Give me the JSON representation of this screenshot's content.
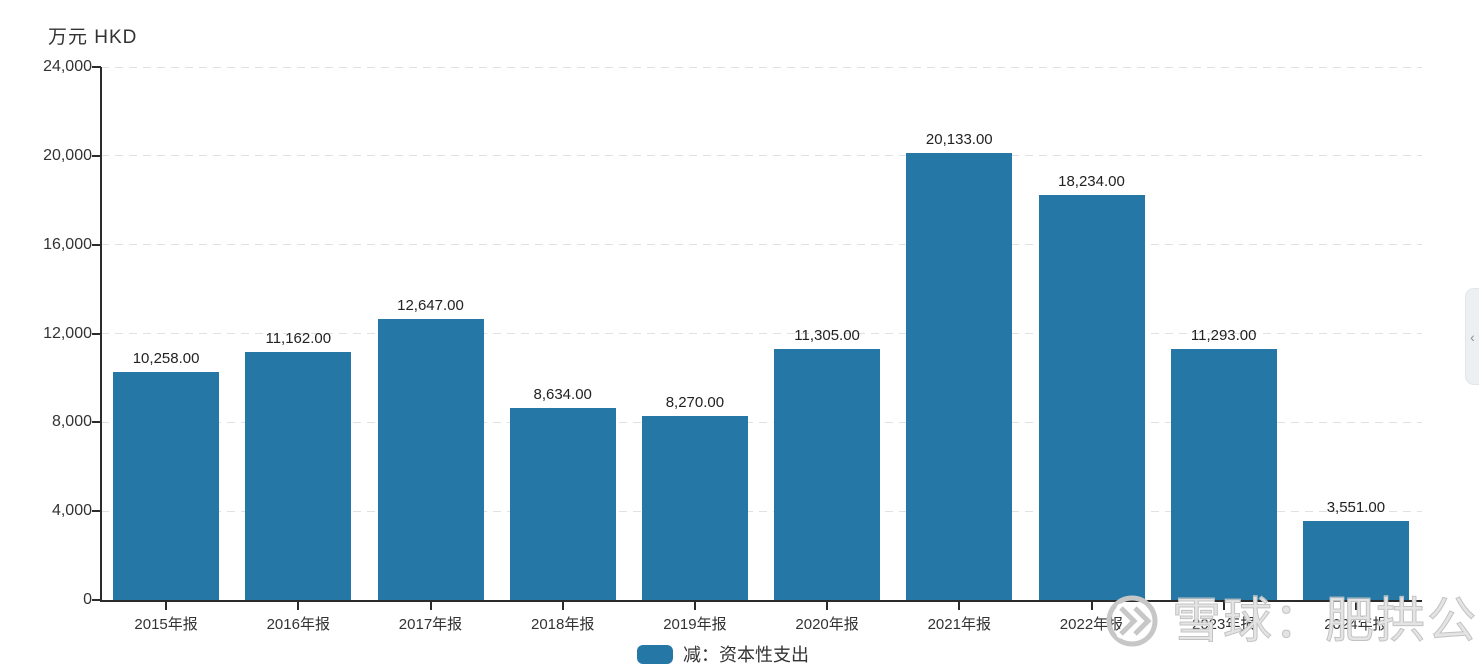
{
  "unit_label": "万元 HKD",
  "chart_data": {
    "type": "bar",
    "title": "",
    "ylabel": "万元 HKD",
    "categories": [
      "2015年报",
      "2016年报",
      "2017年报",
      "2018年报",
      "2019年报",
      "2020年报",
      "2021年报",
      "2022年报",
      "2023年报",
      "2024年报"
    ],
    "series": [
      {
        "name": "减：资本性支出",
        "color": "#2578a6",
        "values": [
          10258,
          11162,
          12647,
          8634,
          8270,
          11305,
          20133,
          18234,
          11293,
          3551
        ],
        "value_labels": [
          "10,258.00",
          "11,162.00",
          "12,647.00",
          "8,634.00",
          "8,270.00",
          "11,305.00",
          "20,133.00",
          "18,234.00",
          "11,293.00",
          "3,551.00"
        ]
      }
    ],
    "ylim": [
      0,
      24000
    ],
    "yticks": [
      0,
      4000,
      8000,
      12000,
      16000,
      20000,
      24000
    ],
    "ytick_labels": [
      "0",
      "4,000",
      "8,000",
      "12,000",
      "16,000",
      "20,000",
      "24,000"
    ],
    "grid": "horizontal-dashed",
    "legend_position": "bottom-center"
  },
  "legend": {
    "items": [
      {
        "label": "减：资本性支出",
        "color": "#2578a6"
      }
    ]
  },
  "watermark": {
    "text": "雪球：肥拱公"
  },
  "side_panel_tab": {
    "collapse_glyph": "‹"
  },
  "colors": {
    "bar": "#2578a6",
    "axis": "#2b2b2b",
    "grid": "#e1e1e1",
    "text": "#333333",
    "watermark": "#c8c8c8"
  }
}
